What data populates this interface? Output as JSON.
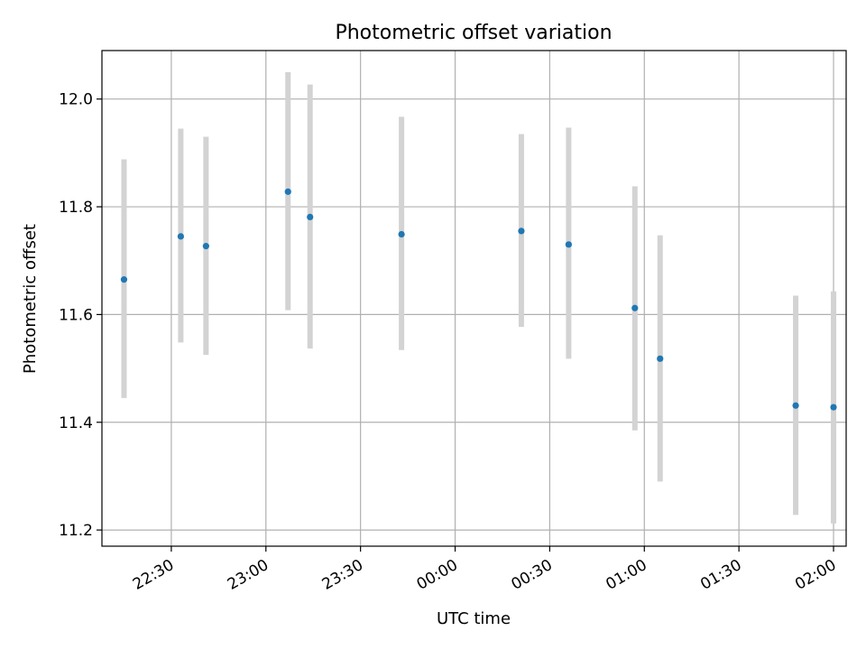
{
  "chart_data": {
    "type": "scatter",
    "title": "Photometric offset variation",
    "xlabel": "UTC time",
    "ylabel": "Photometric offset",
    "x_tick_labels": [
      "22:30",
      "23:00",
      "23:30",
      "00:00",
      "00:30",
      "01:00",
      "01:30",
      "02:00"
    ],
    "y_tick_labels": [
      "11.2",
      "11.4",
      "11.6",
      "11.8",
      "12.0"
    ],
    "y_ticks": [
      11.2,
      11.4,
      11.6,
      11.8,
      12.0
    ],
    "ylim": [
      11.17,
      12.09
    ],
    "x_ticks": [
      "22:30",
      "23:00",
      "23:30",
      "00:00",
      "00:30",
      "01:00",
      "01:30",
      "02:00"
    ],
    "xlim": [
      "22:08",
      "02:04"
    ],
    "grid": true,
    "colors": {
      "points": "#1f77b4",
      "error_bars": "#d3d3d3",
      "grid": "#b0b0b0"
    },
    "points": [
      {
        "x": "22:15",
        "y": 11.665,
        "low": 11.445,
        "high": 11.888
      },
      {
        "x": "22:33",
        "y": 11.745,
        "low": 11.548,
        "high": 11.945
      },
      {
        "x": "22:41",
        "y": 11.727,
        "low": 11.525,
        "high": 11.93
      },
      {
        "x": "23:07",
        "y": 11.828,
        "low": 11.608,
        "high": 12.05
      },
      {
        "x": "23:14",
        "y": 11.781,
        "low": 11.537,
        "high": 12.027
      },
      {
        "x": "23:43",
        "y": 11.749,
        "low": 11.534,
        "high": 11.967
      },
      {
        "x": "00:21",
        "y": 11.755,
        "low": 11.577,
        "high": 11.935
      },
      {
        "x": "00:36",
        "y": 11.73,
        "low": 11.518,
        "high": 11.947
      },
      {
        "x": "00:57",
        "y": 11.612,
        "low": 11.385,
        "high": 11.838
      },
      {
        "x": "01:05",
        "y": 11.518,
        "low": 11.29,
        "high": 11.747
      },
      {
        "x": "01:48",
        "y": 11.431,
        "low": 11.228,
        "high": 11.635
      },
      {
        "x": "02:00",
        "y": 11.428,
        "low": 11.212,
        "high": 11.643
      }
    ]
  }
}
